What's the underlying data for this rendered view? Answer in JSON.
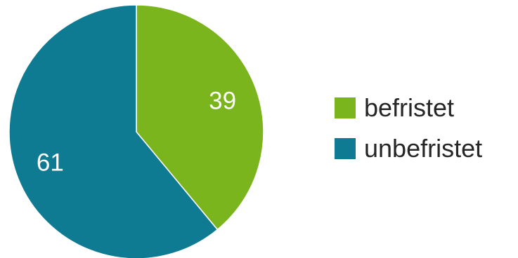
{
  "chart_data": {
    "type": "pie",
    "title": "",
    "categories": [
      "befristet",
      "unbefristet"
    ],
    "values": [
      39,
      61
    ],
    "value_labels": [
      "39",
      "61"
    ],
    "colors": [
      "#7ab51d",
      "#0f7b93"
    ],
    "start_angle_deg": 0,
    "direction": "clockwise",
    "legend": {
      "position": "right",
      "entries": [
        "befristet",
        "unbefristet"
      ]
    }
  }
}
